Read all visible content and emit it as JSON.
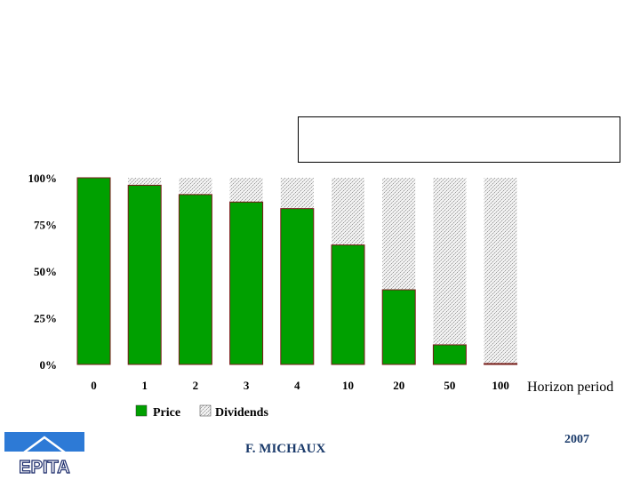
{
  "chart_data": {
    "type": "bar",
    "stacked": true,
    "percent": true,
    "categories": [
      "0",
      "1",
      "2",
      "3",
      "4",
      "10",
      "20",
      "50",
      "100"
    ],
    "series": [
      {
        "name": "Price",
        "values": [
          100,
          96,
          91,
          87,
          83.5,
          64,
          40,
          10.5,
          0.5
        ],
        "color": "#00a000"
      },
      {
        "name": "Dividends",
        "values": [
          0,
          4,
          9,
          13,
          16.5,
          36,
          60,
          89.5,
          99.5
        ],
        "color": "#d8d8d8"
      }
    ],
    "yticks": [
      "100%",
      "75%",
      "50%",
      "25%",
      "0%"
    ],
    "ytick_values": [
      100,
      75,
      50,
      25,
      0
    ],
    "ylim": [
      0,
      100
    ],
    "xlabel": "Horizon period",
    "title": "",
    "legend": "bottom"
  },
  "footer": {
    "author": "F. MICHAUX",
    "year": "2007"
  },
  "logo": {
    "text": "EPITA"
  }
}
